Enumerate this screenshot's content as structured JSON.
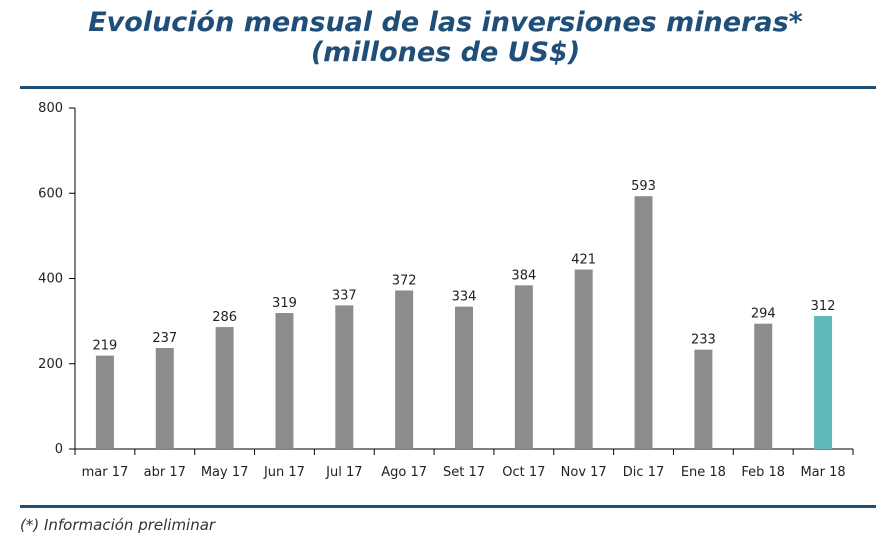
{
  "chart_data": {
    "type": "bar",
    "title": "Evolución mensual de las inversiones mineras*",
    "subtitle": "(millones de US$)",
    "categories": [
      "mar 17",
      "abr 17",
      "May 17",
      "Jun 17",
      "Jul 17",
      "Ago 17",
      "Set 17",
      "Oct 17",
      "Nov 17",
      "Dic 17",
      "Ene 18",
      "Feb 18",
      "Mar 18"
    ],
    "values": [
      219,
      237,
      286,
      319,
      337,
      372,
      334,
      384,
      421,
      593,
      233,
      294,
      312
    ],
    "data_labels": [
      "219",
      "237",
      "286",
      "319",
      "337",
      "372",
      "334",
      "384",
      "421",
      "593",
      "233",
      "294",
      "312"
    ],
    "yticks": [
      0,
      200,
      400,
      600,
      800
    ],
    "ytick_labels": [
      "0",
      "200",
      "400",
      "600",
      "800"
    ],
    "ylim": [
      0,
      800
    ],
    "xlabel": "",
    "ylabel": "",
    "grid": false,
    "legend": "none",
    "colors": {
      "bar": "#8c8c8c",
      "highlight_bar": "#5fb7b7",
      "highlight_index": 12
    }
  },
  "footnote": "(*) Información preliminar",
  "colors": {
    "accent": "#1f4e79"
  }
}
